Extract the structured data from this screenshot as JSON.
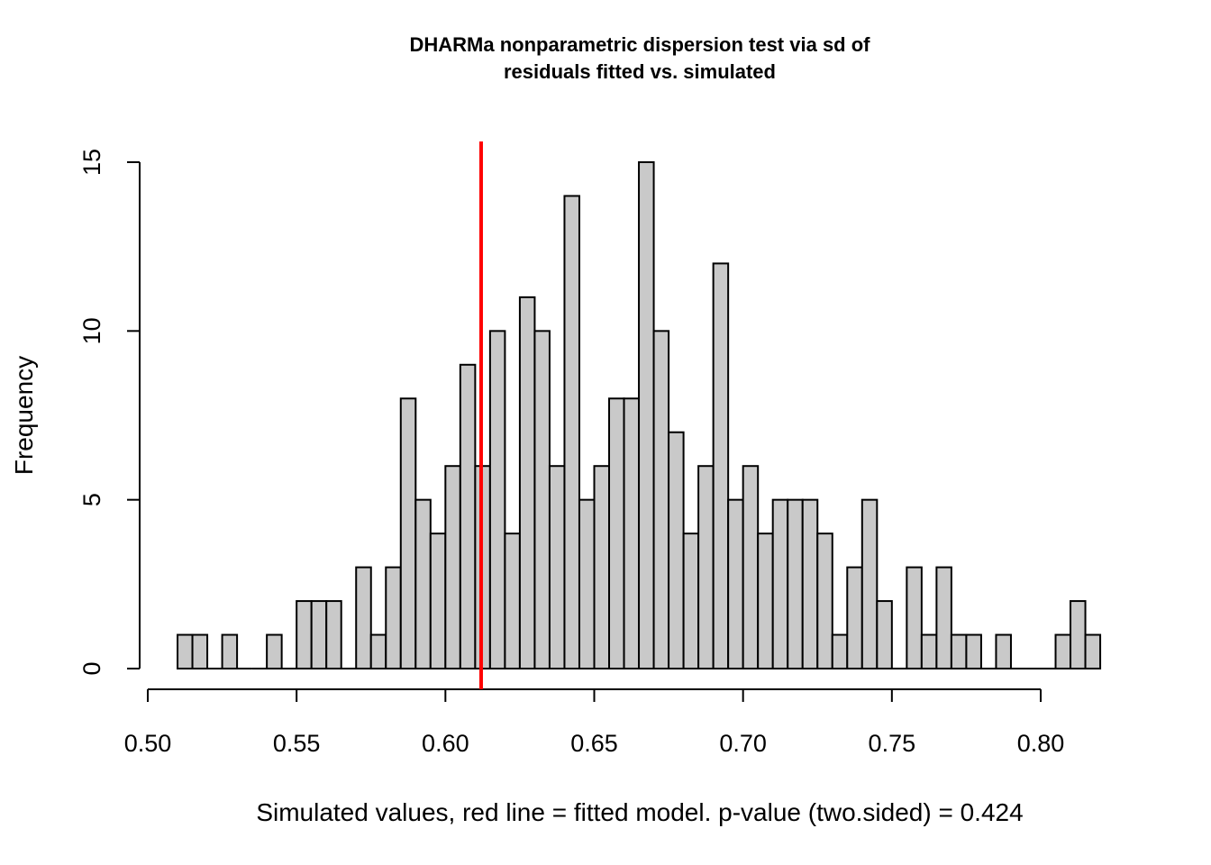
{
  "chart_data": {
    "type": "bar",
    "title_lines": [
      "DHARMa nonparametric dispersion test via sd of",
      "residuals fitted vs. simulated"
    ],
    "xlabel": "Simulated values, red line = fitted model. p-value (two.sided) = 0.424",
    "ylabel": "Frequency",
    "bin_start": 0.51,
    "bin_width": 0.005,
    "values": [
      1,
      1,
      0,
      1,
      0,
      0,
      1,
      0,
      2,
      2,
      2,
      0,
      3,
      1,
      3,
      8,
      5,
      4,
      6,
      9,
      6,
      10,
      4,
      11,
      10,
      6,
      14,
      5,
      6,
      8,
      8,
      15,
      10,
      7,
      4,
      6,
      12,
      5,
      6,
      4,
      5,
      5,
      5,
      4,
      1,
      3,
      5,
      2,
      0,
      3,
      1,
      3,
      1,
      1,
      0,
      1,
      0,
      0,
      0,
      1,
      2,
      1
    ],
    "xlim": [
      0.5,
      0.8
    ],
    "ylim": [
      0,
      15
    ],
    "x_ticks": [
      "0.50",
      "0.55",
      "0.60",
      "0.65",
      "0.70",
      "0.75",
      "0.80"
    ],
    "y_ticks": [
      "0",
      "5",
      "10",
      "15"
    ],
    "fitted_value": 0.612,
    "colors": {
      "bar_fill": "#c9c9c9",
      "bar_stroke": "#000000",
      "reference_line": "#ff0000"
    }
  }
}
